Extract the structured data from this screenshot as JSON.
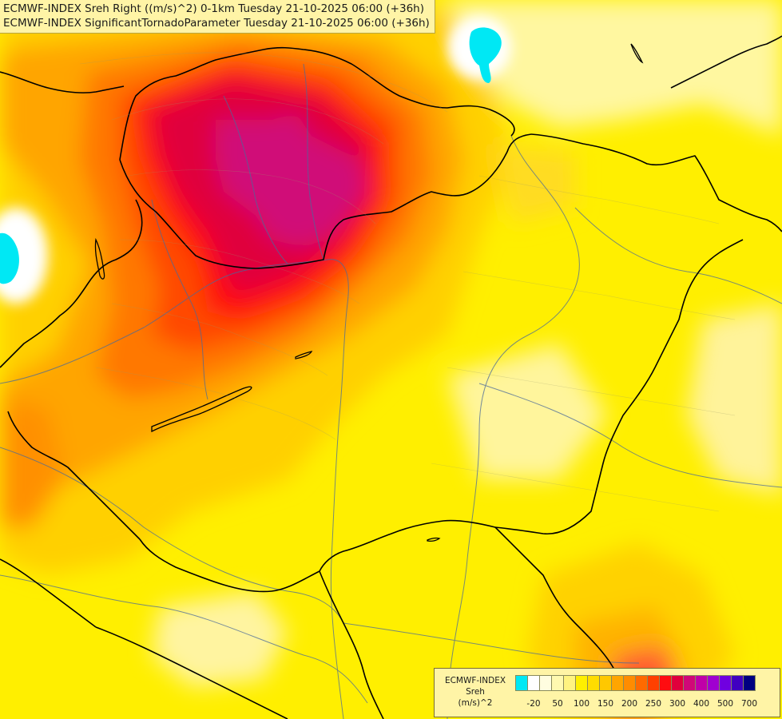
{
  "titles": [
    "ECMWF-INDEX Sreh Right ((m/s)^2) 0-1km Tuesday 21-10-2025 06:00 (+36h)",
    "ECMWF-INDEX SignificantTornadoParameter Tuesday 21-10-2025 06:00 (+36h)"
  ],
  "legend": {
    "model": "ECMWF-INDEX",
    "parameter": "Sreh",
    "unit": "(m/s)^2",
    "colors": [
      "#00e8f4",
      "#ffffff",
      "#fffde0",
      "#fff9b0",
      "#fff380",
      "#ffef00",
      "#ffdc00",
      "#ffc800",
      "#ffa500",
      "#ff8c00",
      "#ff6a00",
      "#ff4000",
      "#ff0c10",
      "#e0003c",
      "#d00878",
      "#c000a8",
      "#a000d0",
      "#7000e0",
      "#4000c0",
      "#000080"
    ],
    "ticks": [
      {
        "label": "-20",
        "index": 1
      },
      {
        "label": "50",
        "index": 3
      },
      {
        "label": "100",
        "index": 5
      },
      {
        "label": "150",
        "index": 7
      },
      {
        "label": "200",
        "index": 9
      },
      {
        "label": "250",
        "index": 11
      },
      {
        "label": "300",
        "index": 13
      },
      {
        "label": "400",
        "index": 15
      },
      {
        "label": "500",
        "index": 17
      },
      {
        "label": "700",
        "index": 19
      }
    ]
  }
}
